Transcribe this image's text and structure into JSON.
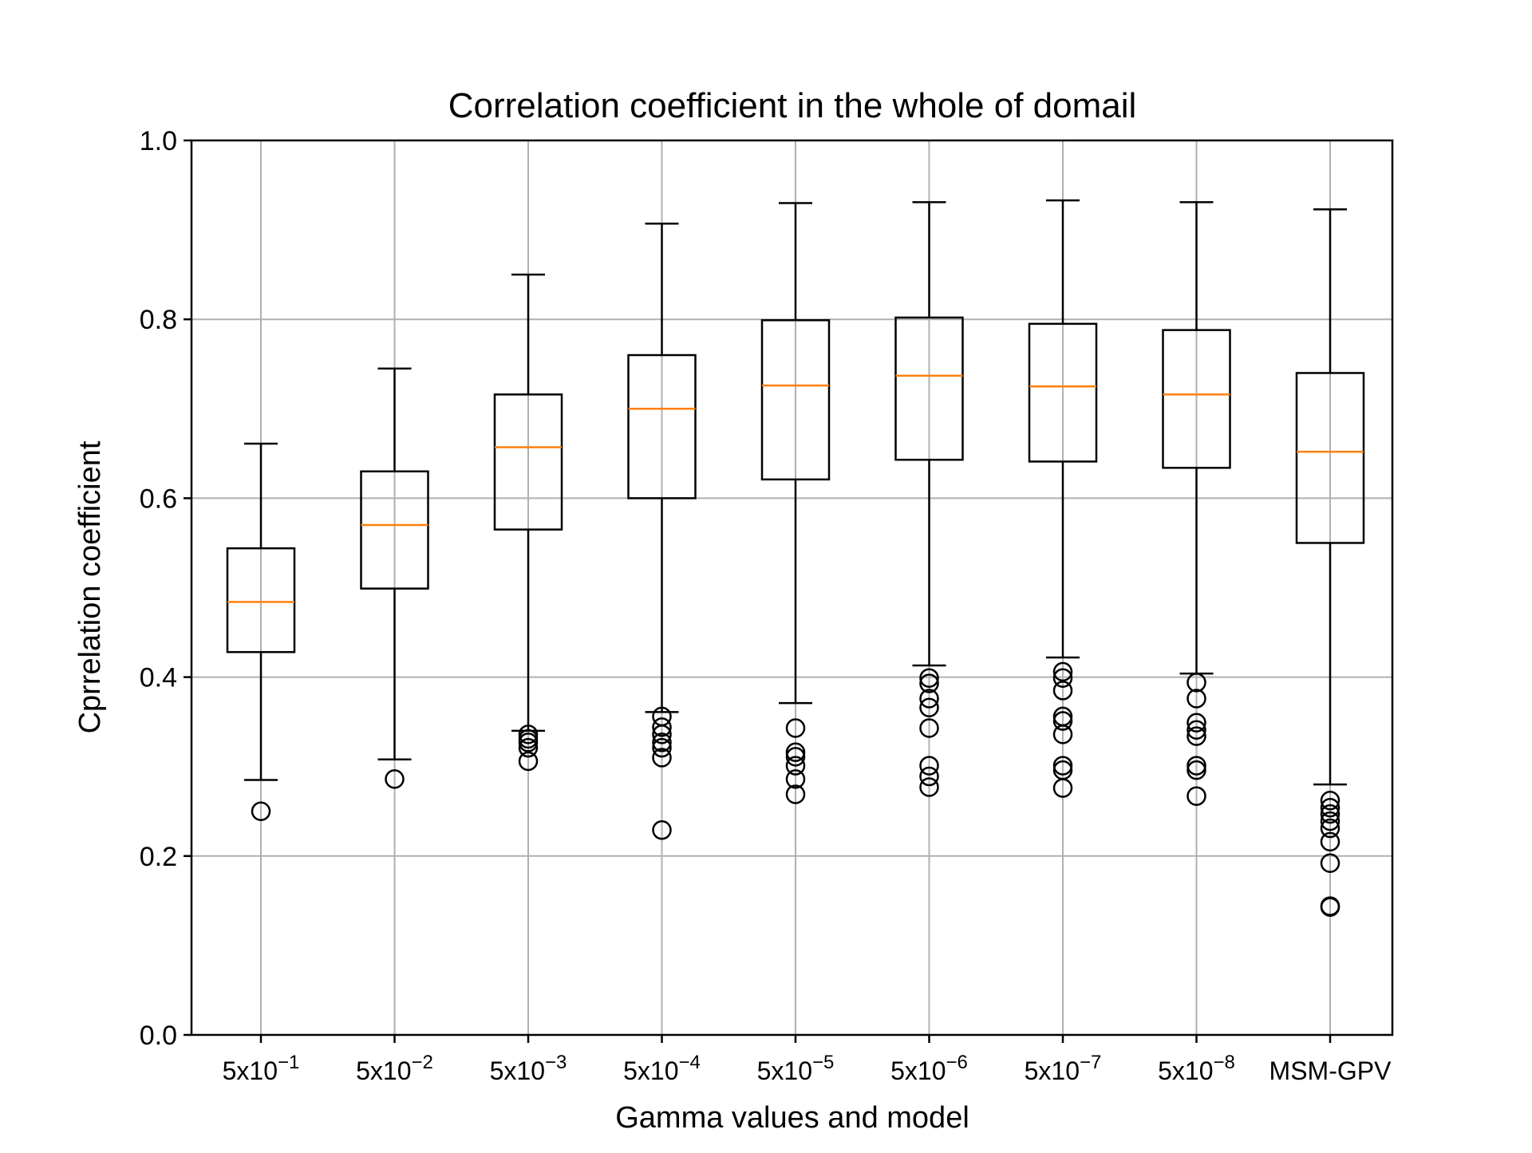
{
  "chart_data": {
    "type": "box",
    "title": "Correlation coefficient in the whole of domail",
    "xlabel": "Gamma values and model",
    "ylabel": "Cprrelation coefficient",
    "ylim": [
      0.0,
      1.0
    ],
    "yticks": [
      "0.0",
      "0.2",
      "0.4",
      "0.6",
      "0.8",
      "1.0"
    ],
    "grid": true,
    "colors": {
      "box": "#000000",
      "median": "#ff7f0e",
      "grid": "#b0b0b0"
    },
    "categories": [
      {
        "base": "5x10",
        "exp": "−1"
      },
      {
        "base": "5x10",
        "exp": "−2"
      },
      {
        "base": "5x10",
        "exp": "−3"
      },
      {
        "base": "5x10",
        "exp": "−4"
      },
      {
        "base": "5x10",
        "exp": "−5"
      },
      {
        "base": "5x10",
        "exp": "−6"
      },
      {
        "base": "5x10",
        "exp": "−7"
      },
      {
        "base": "5x10",
        "exp": "−8"
      },
      {
        "base": "MSM-GPV",
        "exp": ""
      }
    ],
    "boxes": [
      {
        "whisker_low": 0.285,
        "q1": 0.428,
        "median": 0.484,
        "q3": 0.544,
        "whisker_high": 0.661,
        "outliers": [
          0.25
        ]
      },
      {
        "whisker_low": 0.308,
        "q1": 0.499,
        "median": 0.57,
        "q3": 0.63,
        "whisker_high": 0.745,
        "outliers": [
          0.286
        ]
      },
      {
        "whisker_low": 0.34,
        "q1": 0.565,
        "median": 0.657,
        "q3": 0.716,
        "whisker_high": 0.85,
        "outliers": [
          0.336,
          0.331,
          0.327,
          0.321,
          0.306
        ]
      },
      {
        "whisker_low": 0.361,
        "q1": 0.6,
        "median": 0.7,
        "q3": 0.76,
        "whisker_high": 0.907,
        "outliers": [
          0.356,
          0.344,
          0.336,
          0.327,
          0.321,
          0.31,
          0.229
        ]
      },
      {
        "whisker_low": 0.371,
        "q1": 0.621,
        "median": 0.726,
        "q3": 0.799,
        "whisker_high": 0.93,
        "outliers": [
          0.343,
          0.316,
          0.311,
          0.301,
          0.286,
          0.269
        ]
      },
      {
        "whisker_low": 0.413,
        "q1": 0.643,
        "median": 0.737,
        "q3": 0.802,
        "whisker_high": 0.931,
        "outliers": [
          0.399,
          0.393,
          0.376,
          0.366,
          0.343,
          0.301,
          0.289,
          0.277
        ]
      },
      {
        "whisker_low": 0.422,
        "q1": 0.641,
        "median": 0.725,
        "q3": 0.795,
        "whisker_high": 0.933,
        "outliers": [
          0.406,
          0.399,
          0.385,
          0.356,
          0.351,
          0.336,
          0.301,
          0.296,
          0.276
        ]
      },
      {
        "whisker_low": 0.404,
        "q1": 0.634,
        "median": 0.716,
        "q3": 0.788,
        "whisker_high": 0.931,
        "outliers": [
          0.394,
          0.376,
          0.349,
          0.341,
          0.334,
          0.301,
          0.296,
          0.267
        ]
      },
      {
        "whisker_low": 0.28,
        "q1": 0.55,
        "median": 0.652,
        "q3": 0.74,
        "whisker_high": 0.923,
        "outliers": [
          0.262,
          0.254,
          0.247,
          0.239,
          0.231,
          0.216,
          0.192,
          0.144,
          0.143
        ]
      }
    ]
  }
}
